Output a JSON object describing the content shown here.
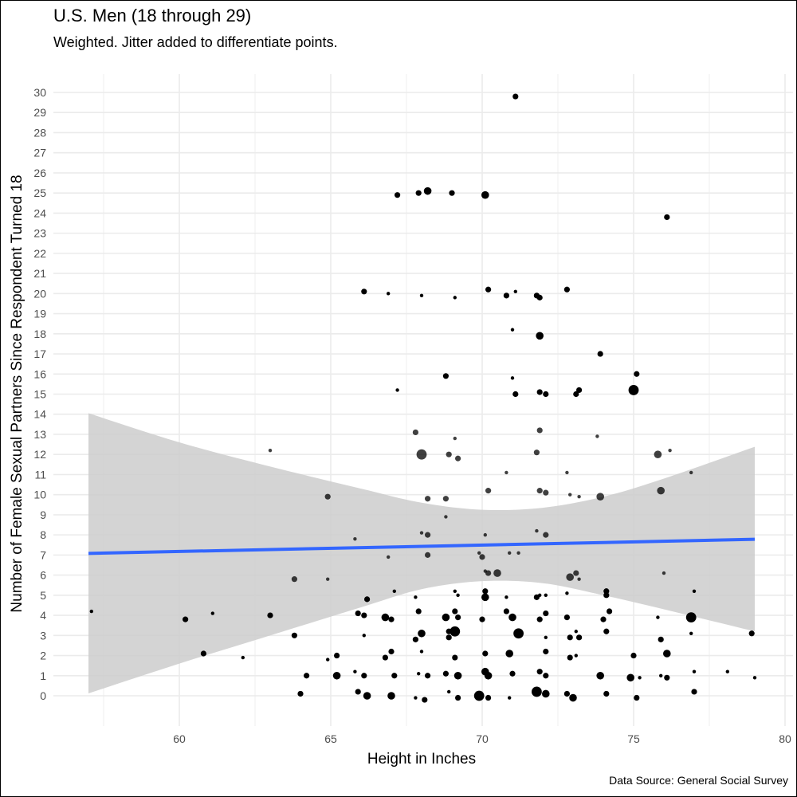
{
  "title": "U.S. Men (18 through 29)",
  "subtitle": "Weighted. Jitter added to differentiate points.",
  "caption": "Data Source: General Social Survey",
  "chart_data": {
    "type": "scatter",
    "xlabel": "Height in Inches",
    "ylabel": "Number of Female Sexual Partners Since Respondent Turned 18",
    "xlim": [
      56.3,
      80.3
    ],
    "ylim": [
      -1.5,
      30.8
    ],
    "x_ticks": [
      60,
      65,
      70,
      75,
      80
    ],
    "y_ticks": [
      0,
      1,
      2,
      3,
      4,
      5,
      6,
      7,
      8,
      9,
      10,
      11,
      12,
      13,
      14,
      15,
      16,
      17,
      18,
      19,
      20,
      21,
      22,
      23,
      24,
      25,
      26,
      27,
      28,
      29,
      30
    ],
    "grid": true,
    "colors": {
      "points": "#000000",
      "trend_line": "#3366ff",
      "confidence_band": "#cccccc",
      "grid": "#ebebeb"
    },
    "trend_line": {
      "x": [
        57,
        79
      ],
      "y": [
        7.08,
        7.78
      ]
    },
    "confidence_band": {
      "x": [
        57,
        60,
        63,
        66,
        68,
        70,
        72,
        74,
        76,
        79
      ],
      "upper": [
        14.05,
        12.6,
        11.4,
        10.3,
        9.6,
        9.25,
        9.35,
        9.9,
        10.8,
        12.38
      ],
      "lower": [
        0.12,
        1.6,
        3.0,
        4.4,
        5.3,
        5.7,
        5.6,
        5.0,
        4.3,
        3.2
      ]
    },
    "points": [
      {
        "x": 71.1,
        "y": 29.8,
        "w": 2
      },
      {
        "x": 67.2,
        "y": 24.9,
        "w": 2
      },
      {
        "x": 67.9,
        "y": 25.0,
        "w": 2
      },
      {
        "x": 68.2,
        "y": 25.1,
        "w": 3
      },
      {
        "x": 69.0,
        "y": 25.0,
        "w": 2
      },
      {
        "x": 70.1,
        "y": 24.9,
        "w": 3
      },
      {
        "x": 76.1,
        "y": 23.8,
        "w": 2
      },
      {
        "x": 66.1,
        "y": 20.1,
        "w": 2
      },
      {
        "x": 66.9,
        "y": 20.0,
        "w": 1
      },
      {
        "x": 68.0,
        "y": 19.9,
        "w": 1
      },
      {
        "x": 69.1,
        "y": 19.8,
        "w": 1
      },
      {
        "x": 70.2,
        "y": 20.2,
        "w": 2
      },
      {
        "x": 70.8,
        "y": 19.9,
        "w": 2
      },
      {
        "x": 71.1,
        "y": 20.1,
        "w": 1
      },
      {
        "x": 71.8,
        "y": 19.9,
        "w": 2
      },
      {
        "x": 71.9,
        "y": 19.8,
        "w": 2
      },
      {
        "x": 72.8,
        "y": 20.2,
        "w": 2
      },
      {
        "x": 71.0,
        "y": 18.2,
        "w": 1
      },
      {
        "x": 71.9,
        "y": 17.9,
        "w": 3
      },
      {
        "x": 73.9,
        "y": 17.0,
        "w": 2
      },
      {
        "x": 68.8,
        "y": 15.9,
        "w": 2
      },
      {
        "x": 71.0,
        "y": 15.8,
        "w": 1
      },
      {
        "x": 75.1,
        "y": 16.0,
        "w": 2
      },
      {
        "x": 67.2,
        "y": 15.2,
        "w": 1
      },
      {
        "x": 71.1,
        "y": 15.0,
        "w": 2
      },
      {
        "x": 71.9,
        "y": 15.1,
        "w": 2
      },
      {
        "x": 72.1,
        "y": 15.0,
        "w": 2
      },
      {
        "x": 73.1,
        "y": 15.0,
        "w": 2
      },
      {
        "x": 73.2,
        "y": 15.2,
        "w": 2
      },
      {
        "x": 75.0,
        "y": 15.2,
        "w": 4
      },
      {
        "x": 67.8,
        "y": 13.1,
        "w": 2
      },
      {
        "x": 71.9,
        "y": 13.2,
        "w": 2
      },
      {
        "x": 73.8,
        "y": 12.9,
        "w": 1
      },
      {
        "x": 63.0,
        "y": 12.2,
        "w": 1
      },
      {
        "x": 68.0,
        "y": 12.0,
        "w": 4
      },
      {
        "x": 68.9,
        "y": 12.0,
        "w": 2
      },
      {
        "x": 69.1,
        "y": 12.8,
        "w": 1
      },
      {
        "x": 69.2,
        "y": 11.8,
        "w": 2
      },
      {
        "x": 71.8,
        "y": 12.1,
        "w": 2
      },
      {
        "x": 75.8,
        "y": 12.0,
        "w": 3
      },
      {
        "x": 76.2,
        "y": 12.2,
        "w": 1
      },
      {
        "x": 70.8,
        "y": 11.1,
        "w": 1
      },
      {
        "x": 72.8,
        "y": 11.1,
        "w": 1
      },
      {
        "x": 76.9,
        "y": 11.1,
        "w": 1
      },
      {
        "x": 70.2,
        "y": 10.2,
        "w": 2
      },
      {
        "x": 71.9,
        "y": 10.2,
        "w": 2
      },
      {
        "x": 72.1,
        "y": 10.1,
        "w": 2
      },
      {
        "x": 75.9,
        "y": 10.2,
        "w": 3
      },
      {
        "x": 64.9,
        "y": 9.9,
        "w": 2
      },
      {
        "x": 68.2,
        "y": 9.8,
        "w": 2
      },
      {
        "x": 68.8,
        "y": 9.8,
        "w": 2
      },
      {
        "x": 72.9,
        "y": 10.0,
        "w": 1
      },
      {
        "x": 73.2,
        "y": 9.9,
        "w": 1
      },
      {
        "x": 73.9,
        "y": 9.9,
        "w": 3
      },
      {
        "x": 68.8,
        "y": 8.9,
        "w": 1
      },
      {
        "x": 68.0,
        "y": 8.1,
        "w": 1
      },
      {
        "x": 68.2,
        "y": 8.0,
        "w": 2
      },
      {
        "x": 70.1,
        "y": 8.0,
        "w": 1
      },
      {
        "x": 71.8,
        "y": 8.2,
        "w": 1
      },
      {
        "x": 72.1,
        "y": 8.0,
        "w": 2
      },
      {
        "x": 65.8,
        "y": 7.8,
        "w": 1
      },
      {
        "x": 66.9,
        "y": 6.9,
        "w": 1
      },
      {
        "x": 68.2,
        "y": 7.0,
        "w": 2
      },
      {
        "x": 69.9,
        "y": 7.1,
        "w": 1
      },
      {
        "x": 70.0,
        "y": 6.9,
        "w": 2
      },
      {
        "x": 70.9,
        "y": 7.1,
        "w": 1
      },
      {
        "x": 71.2,
        "y": 7.1,
        "w": 1
      },
      {
        "x": 70.1,
        "y": 6.2,
        "w": 1
      },
      {
        "x": 70.2,
        "y": 6.1,
        "w": 2
      },
      {
        "x": 70.5,
        "y": 6.1,
        "w": 3
      },
      {
        "x": 72.9,
        "y": 5.9,
        "w": 3
      },
      {
        "x": 73.1,
        "y": 6.1,
        "w": 2
      },
      {
        "x": 76.0,
        "y": 6.1,
        "w": 1
      },
      {
        "x": 63.8,
        "y": 5.8,
        "w": 2
      },
      {
        "x": 64.9,
        "y": 5.8,
        "w": 1
      },
      {
        "x": 73.2,
        "y": 5.8,
        "w": 1
      },
      {
        "x": 57.1,
        "y": 4.2,
        "w": 1
      },
      {
        "x": 61.1,
        "y": 4.1,
        "w": 1
      },
      {
        "x": 67.1,
        "y": 5.2,
        "w": 1
      },
      {
        "x": 69.1,
        "y": 5.2,
        "w": 1
      },
      {
        "x": 70.1,
        "y": 5.2,
        "w": 2
      },
      {
        "x": 72.8,
        "y": 5.1,
        "w": 1
      },
      {
        "x": 74.1,
        "y": 5.2,
        "w": 2
      },
      {
        "x": 77.0,
        "y": 5.2,
        "w": 1
      },
      {
        "x": 66.2,
        "y": 4.8,
        "w": 2
      },
      {
        "x": 67.8,
        "y": 4.9,
        "w": 1
      },
      {
        "x": 69.2,
        "y": 5.0,
        "w": 1
      },
      {
        "x": 70.1,
        "y": 4.9,
        "w": 3
      },
      {
        "x": 70.8,
        "y": 4.9,
        "w": 1
      },
      {
        "x": 71.8,
        "y": 4.9,
        "w": 2
      },
      {
        "x": 71.9,
        "y": 5.0,
        "w": 1
      },
      {
        "x": 72.1,
        "y": 5.0,
        "w": 1
      },
      {
        "x": 74.1,
        "y": 5.0,
        "w": 2
      },
      {
        "x": 60.2,
        "y": 3.8,
        "w": 2
      },
      {
        "x": 63.0,
        "y": 4.0,
        "w": 2
      },
      {
        "x": 65.9,
        "y": 4.1,
        "w": 2
      },
      {
        "x": 66.1,
        "y": 4.0,
        "w": 2
      },
      {
        "x": 66.8,
        "y": 3.9,
        "w": 3
      },
      {
        "x": 67.0,
        "y": 3.8,
        "w": 2
      },
      {
        "x": 67.9,
        "y": 4.2,
        "w": 2
      },
      {
        "x": 68.8,
        "y": 3.9,
        "w": 3
      },
      {
        "x": 69.1,
        "y": 4.2,
        "w": 2
      },
      {
        "x": 69.2,
        "y": 3.9,
        "w": 2
      },
      {
        "x": 70.0,
        "y": 3.8,
        "w": 2
      },
      {
        "x": 70.8,
        "y": 4.2,
        "w": 2
      },
      {
        "x": 71.0,
        "y": 3.9,
        "w": 3
      },
      {
        "x": 71.9,
        "y": 3.8,
        "w": 2
      },
      {
        "x": 72.1,
        "y": 4.1,
        "w": 2
      },
      {
        "x": 72.8,
        "y": 3.9,
        "w": 2
      },
      {
        "x": 74.0,
        "y": 3.8,
        "w": 2
      },
      {
        "x": 74.2,
        "y": 4.2,
        "w": 2
      },
      {
        "x": 75.8,
        "y": 3.9,
        "w": 1
      },
      {
        "x": 76.9,
        "y": 3.9,
        "w": 4
      },
      {
        "x": 63.8,
        "y": 3.0,
        "w": 2
      },
      {
        "x": 66.1,
        "y": 3.0,
        "w": 1
      },
      {
        "x": 68.0,
        "y": 3.1,
        "w": 3
      },
      {
        "x": 68.9,
        "y": 3.2,
        "w": 2
      },
      {
        "x": 69.1,
        "y": 3.2,
        "w": 4
      },
      {
        "x": 71.2,
        "y": 3.1,
        "w": 4
      },
      {
        "x": 72.1,
        "y": 2.9,
        "w": 1
      },
      {
        "x": 72.9,
        "y": 2.9,
        "w": 2
      },
      {
        "x": 73.1,
        "y": 3.2,
        "w": 1
      },
      {
        "x": 73.2,
        "y": 2.9,
        "w": 2
      },
      {
        "x": 74.1,
        "y": 3.2,
        "w": 2
      },
      {
        "x": 76.9,
        "y": 3.1,
        "w": 1
      },
      {
        "x": 78.9,
        "y": 3.1,
        "w": 2
      },
      {
        "x": 67.8,
        "y": 2.8,
        "w": 2
      },
      {
        "x": 68.9,
        "y": 2.9,
        "w": 2
      },
      {
        "x": 75.9,
        "y": 2.8,
        "w": 2
      },
      {
        "x": 60.8,
        "y": 2.1,
        "w": 2
      },
      {
        "x": 62.1,
        "y": 1.9,
        "w": 1
      },
      {
        "x": 64.9,
        "y": 1.8,
        "w": 1
      },
      {
        "x": 65.2,
        "y": 2.0,
        "w": 2
      },
      {
        "x": 66.8,
        "y": 1.9,
        "w": 2
      },
      {
        "x": 67.0,
        "y": 2.2,
        "w": 2
      },
      {
        "x": 68.0,
        "y": 2.2,
        "w": 1
      },
      {
        "x": 69.1,
        "y": 1.9,
        "w": 2
      },
      {
        "x": 70.1,
        "y": 2.1,
        "w": 2
      },
      {
        "x": 70.9,
        "y": 2.1,
        "w": 3
      },
      {
        "x": 72.1,
        "y": 2.2,
        "w": 2
      },
      {
        "x": 72.9,
        "y": 1.9,
        "w": 2
      },
      {
        "x": 73.1,
        "y": 2.0,
        "w": 1
      },
      {
        "x": 75.0,
        "y": 2.0,
        "w": 2
      },
      {
        "x": 76.1,
        "y": 2.1,
        "w": 3
      },
      {
        "x": 64.2,
        "y": 1.0,
        "w": 2
      },
      {
        "x": 65.2,
        "y": 1.0,
        "w": 3
      },
      {
        "x": 65.8,
        "y": 1.2,
        "w": 1
      },
      {
        "x": 66.1,
        "y": 1.0,
        "w": 2
      },
      {
        "x": 67.1,
        "y": 1.0,
        "w": 2
      },
      {
        "x": 67.9,
        "y": 1.1,
        "w": 1
      },
      {
        "x": 68.2,
        "y": 1.0,
        "w": 2
      },
      {
        "x": 68.8,
        "y": 1.1,
        "w": 2
      },
      {
        "x": 69.2,
        "y": 1.0,
        "w": 3
      },
      {
        "x": 70.1,
        "y": 1.2,
        "w": 3
      },
      {
        "x": 70.2,
        "y": 1.0,
        "w": 3
      },
      {
        "x": 71.0,
        "y": 1.1,
        "w": 2
      },
      {
        "x": 71.9,
        "y": 1.2,
        "w": 2
      },
      {
        "x": 72.1,
        "y": 1.0,
        "w": 2
      },
      {
        "x": 73.9,
        "y": 1.0,
        "w": 3
      },
      {
        "x": 74.9,
        "y": 0.9,
        "w": 3
      },
      {
        "x": 75.2,
        "y": 0.9,
        "w": 1
      },
      {
        "x": 75.9,
        "y": 1.0,
        "w": 1
      },
      {
        "x": 76.1,
        "y": 0.9,
        "w": 2
      },
      {
        "x": 77.0,
        "y": 1.2,
        "w": 1
      },
      {
        "x": 78.1,
        "y": 1.2,
        "w": 1
      },
      {
        "x": 79.0,
        "y": 0.9,
        "w": 1
      },
      {
        "x": 64.0,
        "y": 0.1,
        "w": 2
      },
      {
        "x": 65.9,
        "y": 0.2,
        "w": 2
      },
      {
        "x": 66.2,
        "y": 0.0,
        "w": 3
      },
      {
        "x": 67.0,
        "y": 0.0,
        "w": 3
      },
      {
        "x": 67.8,
        "y": -0.1,
        "w": 1
      },
      {
        "x": 68.1,
        "y": -0.2,
        "w": 2
      },
      {
        "x": 68.9,
        "y": 0.2,
        "w": 1
      },
      {
        "x": 69.2,
        "y": -0.1,
        "w": 2
      },
      {
        "x": 69.9,
        "y": 0.0,
        "w": 4
      },
      {
        "x": 70.2,
        "y": -0.1,
        "w": 2
      },
      {
        "x": 70.9,
        "y": -0.1,
        "w": 1
      },
      {
        "x": 71.8,
        "y": 0.2,
        "w": 4
      },
      {
        "x": 72.1,
        "y": 0.1,
        "w": 3
      },
      {
        "x": 72.8,
        "y": 0.1,
        "w": 2
      },
      {
        "x": 73.0,
        "y": -0.1,
        "w": 3
      },
      {
        "x": 74.1,
        "y": 0.1,
        "w": 2
      },
      {
        "x": 75.1,
        "y": -0.1,
        "w": 2
      },
      {
        "x": 77.0,
        "y": 0.2,
        "w": 2
      }
    ]
  }
}
